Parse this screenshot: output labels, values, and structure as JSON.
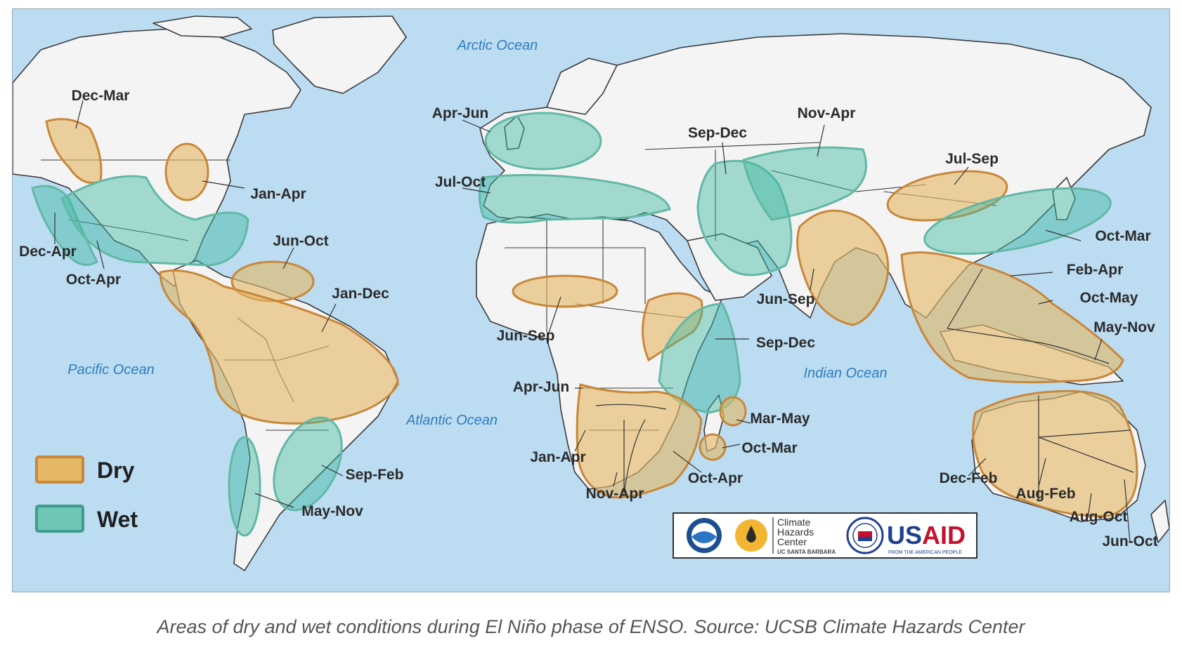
{
  "map": {
    "oceans": {
      "arctic": "Arctic Ocean",
      "pacific": "Pacific Ocean",
      "atlantic": "Atlantic Ocean",
      "indian": "Indian Ocean"
    },
    "regions": [
      {
        "id": "na-northwest",
        "type": "dry",
        "label": "Dec-Mar"
      },
      {
        "id": "great-lakes",
        "type": "dry",
        "label": "Jan-Apr"
      },
      {
        "id": "us-west-coast",
        "type": "wet",
        "label": "Dec-Apr"
      },
      {
        "id": "us-south",
        "type": "wet",
        "label": "Oct-Apr"
      },
      {
        "id": "caribbean",
        "type": "dry",
        "label": "Jun-Oct"
      },
      {
        "id": "northern-south-america",
        "type": "dry",
        "label": "Jan-Dec"
      },
      {
        "id": "southeast-south-america",
        "type": "wet",
        "label": "Sep-Feb"
      },
      {
        "id": "chile",
        "type": "wet",
        "label": "May-Nov"
      },
      {
        "id": "northwest-europe",
        "type": "wet",
        "label": "Apr-Jun"
      },
      {
        "id": "mediterranean",
        "type": "wet",
        "label": "Jul-Oct"
      },
      {
        "id": "sahel",
        "type": "dry",
        "label": "Jun-Sep"
      },
      {
        "id": "central-asia",
        "type": "wet",
        "label": "Sep-Dec"
      },
      {
        "id": "russia",
        "type": "wet",
        "label": "Nov-Apr"
      },
      {
        "id": "india",
        "type": "dry",
        "label": "Jun-Sep"
      },
      {
        "id": "east-africa-north",
        "type": "dry",
        "label": "Jun-Sep"
      },
      {
        "id": "east-africa",
        "type": "wet",
        "label": "Sep-Dec"
      },
      {
        "id": "angola",
        "type": "dry",
        "label": "Apr-Jun"
      },
      {
        "id": "southern-africa-west",
        "type": "dry",
        "label": "Jan-Apr"
      },
      {
        "id": "southern-africa-central",
        "type": "dry",
        "label": "Nov-Apr"
      },
      {
        "id": "southern-africa-east",
        "type": "dry",
        "label": "Oct-Apr"
      },
      {
        "id": "madagascar-north",
        "type": "dry",
        "label": "Mar-May"
      },
      {
        "id": "madagascar-south",
        "type": "dry",
        "label": "Oct-Mar"
      },
      {
        "id": "north-china",
        "type": "dry",
        "label": "Jul-Sep"
      },
      {
        "id": "japan-korea",
        "type": "wet",
        "label": "Oct-Mar"
      },
      {
        "id": "southeast-asia",
        "type": "dry",
        "label": "Feb-Apr"
      },
      {
        "id": "philippines",
        "type": "dry",
        "label": "Oct-May"
      },
      {
        "id": "indonesia",
        "type": "dry",
        "label": "May-Nov"
      },
      {
        "id": "australia-west",
        "type": "dry",
        "label": "Dec-Feb"
      },
      {
        "id": "australia-central",
        "type": "dry",
        "label": "Aug-Feb"
      },
      {
        "id": "australia-south",
        "type": "dry",
        "label": "Aug-Oct"
      },
      {
        "id": "australia-east",
        "type": "dry",
        "label": "Jun-Oct"
      }
    ]
  },
  "legend": {
    "dry_label": "Dry",
    "wet_label": "Wet",
    "dry_color": "#e4b866",
    "wet_color": "#3fb7a2"
  },
  "logos": {
    "noaa_icon": "noaa-logo",
    "chc_icon": "water-drop-icon",
    "chc_lines": [
      "Climate",
      "Hazards",
      "Center",
      "UC SANTA BARBARA"
    ],
    "usaid_icon": "usaid-seal",
    "usaid_text": "USAID",
    "usaid_tagline": "FROM THE AMERICAN PEOPLE"
  },
  "colors": {
    "ocean": "#bcdcf2",
    "land": "#f4f4f4",
    "ocean_label": "#2f7dbf"
  },
  "caption": "Areas of dry and wet conditions during El Niño phase of ENSO. Source: UCSB Climate Hazards Center"
}
